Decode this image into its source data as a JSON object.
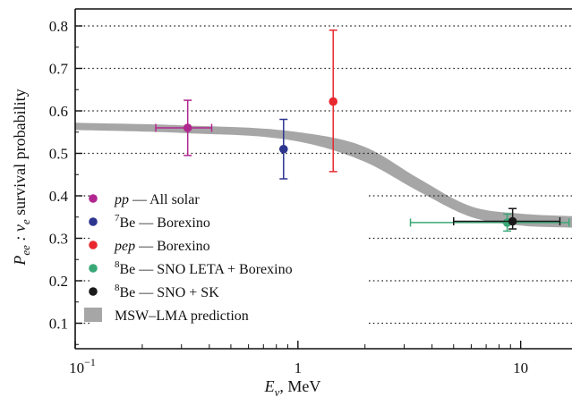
{
  "chart_data": {
    "type": "scatter",
    "title": "",
    "xlabel": {
      "main": "E",
      "sub": "ν",
      "rest": ", MeV"
    },
    "ylabel": {
      "p1": "P",
      "p1sub": "ee",
      "p2": " : ν",
      "p2sub": "e",
      "p3": " survival probability"
    },
    "xscale": "log",
    "xlim": [
      0.1,
      17
    ],
    "ylim": [
      0.04,
      0.84
    ],
    "xticks": [
      {
        "value": 0.1,
        "base": "10",
        "exp": "−1"
      },
      {
        "value": 1,
        "base": "1",
        "exp": ""
      },
      {
        "value": 10,
        "base": "10",
        "exp": ""
      }
    ],
    "yticks": [
      {
        "value": 0.1,
        "label": "0.1"
      },
      {
        "value": 0.2,
        "label": "0.2"
      },
      {
        "value": 0.3,
        "label": "0.3"
      },
      {
        "value": 0.4,
        "label": "0.4"
      },
      {
        "value": 0.5,
        "label": "0.5"
      },
      {
        "value": 0.6,
        "label": "0.6"
      },
      {
        "value": 0.7,
        "label": "0.7"
      },
      {
        "value": 0.8,
        "label": "0.8"
      }
    ],
    "grid": "horizontal dotted",
    "legend_position": "lower-left",
    "series": [
      {
        "name": "pp — All solar",
        "label_parts": {
          "italic": "pp",
          "rest": " — All solar"
        },
        "color": "#b0278f",
        "x": 0.32,
        "y": 0.56,
        "xerr": [
          0.23,
          0.41
        ],
        "yerr": [
          0.495,
          0.625
        ]
      },
      {
        "name": "7Be — Borexino",
        "label_parts": {
          "sup": "7",
          "rest": "Be — Borexino"
        },
        "color": "#2c3590",
        "x": 0.862,
        "y": 0.51,
        "xerr": null,
        "yerr": [
          0.44,
          0.58
        ]
      },
      {
        "name": "pep — Borexino",
        "label_parts": {
          "italic": "pep",
          "rest": " — Borexino"
        },
        "color": "#e8282e",
        "x": 1.44,
        "y": 0.622,
        "xerr": null,
        "yerr": [
          0.457,
          0.79
        ]
      },
      {
        "name": "8Be — SNO LETA + Borexino",
        "label_parts": {
          "sup": "8",
          "rest": "Be — SNO LETA + Borexino"
        },
        "color": "#3aa876",
        "x": 8.7,
        "y": 0.337,
        "xerr": [
          3.2,
          16.5
        ],
        "yerr": [
          0.317,
          0.357
        ]
      },
      {
        "name": "8Be — SNO + SK",
        "label_parts": {
          "sup": "8",
          "rest": "Be — SNO + SK"
        },
        "color": "#1a1a1a",
        "x": 9.2,
        "y": 0.34,
        "xerr": [
          5.0,
          15.0
        ],
        "yerr": [
          0.322,
          0.37
        ]
      }
    ],
    "band": {
      "name": "MSW–LMA prediction",
      "color": "#a6a6a6",
      "x": [
        0.1,
        0.3,
        1.0,
        2.0,
        3.5,
        6.0,
        10.0,
        17.0
      ],
      "upper": [
        0.572,
        0.566,
        0.55,
        0.515,
        0.44,
        0.375,
        0.358,
        0.352
      ],
      "lower": [
        0.555,
        0.548,
        0.528,
        0.48,
        0.41,
        0.35,
        0.33,
        0.325
      ]
    }
  }
}
